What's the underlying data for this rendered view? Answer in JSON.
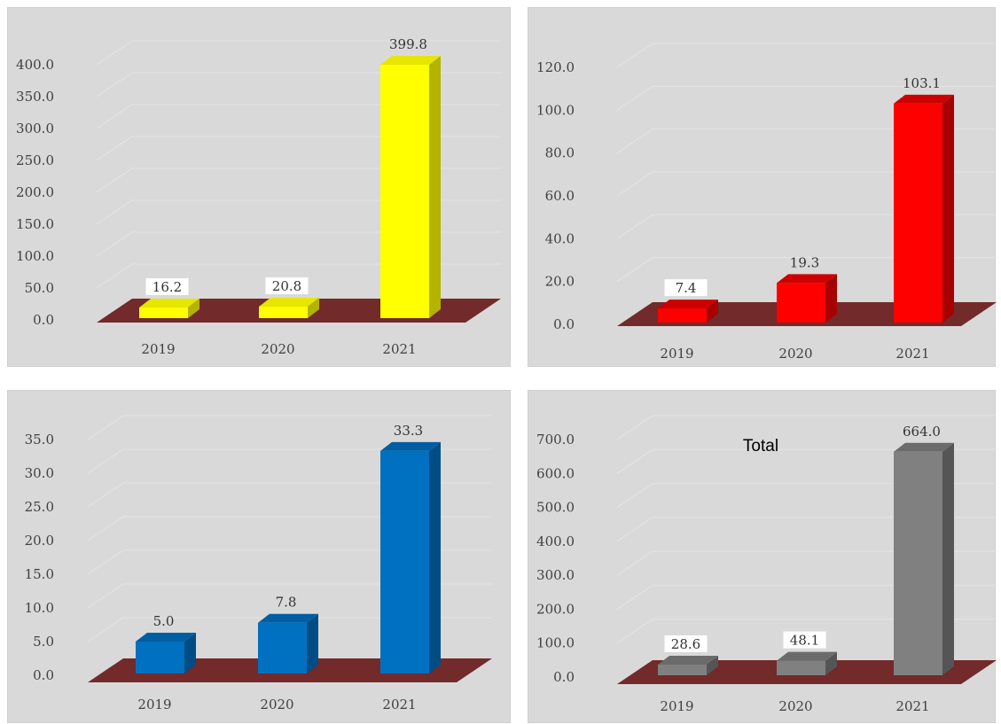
{
  "chart_data": [
    {
      "type": "bar",
      "title": "",
      "categories": [
        "2019",
        "2020",
        "2021"
      ],
      "values": [
        16.2,
        20.8,
        399.8
      ],
      "value_labels": [
        "16.2",
        "20.8",
        "399.8"
      ],
      "ylim": [
        0,
        400
      ],
      "yticks": [
        "0.0",
        "50.0",
        "100.0",
        "150.0",
        "200.0",
        "250.0",
        "300.0",
        "350.0",
        "400.0"
      ],
      "xlabel": "",
      "ylabel": "",
      "grid": true,
      "colors": {
        "front": "#ffff00",
        "side": "#b3b300",
        "top": "#e6e600",
        "floor": "#722a2a"
      }
    },
    {
      "type": "bar",
      "title": "",
      "categories": [
        "2019",
        "2020",
        "2021"
      ],
      "values": [
        7.4,
        19.3,
        103.1
      ],
      "value_labels": [
        "7.4",
        "19.3",
        "103.1"
      ],
      "ylim": [
        0,
        120
      ],
      "yticks": [
        "0.0",
        "20.0",
        "40.0",
        "60.0",
        "80.0",
        "100.0",
        "120.0"
      ],
      "xlabel": "",
      "ylabel": "",
      "grid": true,
      "colors": {
        "front": "#ff0000",
        "side": "#a60000",
        "top": "#cc0000",
        "floor": "#722a2a"
      }
    },
    {
      "type": "bar",
      "title": "",
      "categories": [
        "2019",
        "2020",
        "2021"
      ],
      "values": [
        5.0,
        7.8,
        33.3
      ],
      "value_labels": [
        "5.0",
        "7.8",
        "33.3"
      ],
      "ylim": [
        0,
        35
      ],
      "yticks": [
        "0.0",
        "5.0",
        "10.0",
        "15.0",
        "20.0",
        "25.0",
        "30.0",
        "35.0"
      ],
      "xlabel": "",
      "ylabel": "",
      "grid": true,
      "colors": {
        "front": "#0070c0",
        "side": "#004d85",
        "top": "#005ea3",
        "floor": "#722a2a"
      }
    },
    {
      "type": "bar",
      "title": "Total",
      "categories": [
        "2019",
        "2020",
        "2021"
      ],
      "values": [
        28.6,
        48.1,
        664.0
      ],
      "value_labels": [
        "28.6",
        "48.1",
        "664.0"
      ],
      "ylim": [
        0,
        700
      ],
      "yticks": [
        "0.0",
        "100.0",
        "200.0",
        "300.0",
        "400.0",
        "500.0",
        "600.0",
        "700.0"
      ],
      "xlabel": "",
      "ylabel": "",
      "grid": true,
      "colors": {
        "front": "#808080",
        "side": "#555555",
        "top": "#6b6b6b",
        "floor": "#722a2a"
      }
    }
  ]
}
